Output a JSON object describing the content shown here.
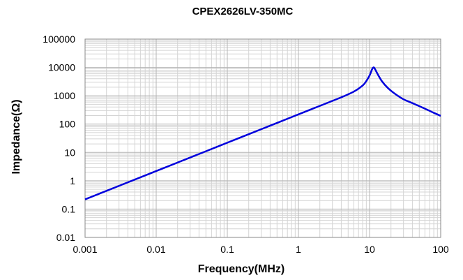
{
  "chart_data": {
    "type": "line",
    "title": "CPEX2626LV-350MC",
    "xlabel": "Frequency(MHz)",
    "ylabel": "Impedance(Ω)",
    "x_scale": "log",
    "y_scale": "log",
    "xlim": [
      0.001,
      100
    ],
    "ylim": [
      0.01,
      100000
    ],
    "x_ticks": [
      "0.001",
      "0.01",
      "0.1",
      "1",
      "10",
      "100"
    ],
    "y_ticks": [
      "100000",
      "10000",
      "1000",
      "100",
      "10",
      "1",
      "0.1",
      "0.01"
    ],
    "grid": true,
    "legend": "none",
    "line_color": "#0000dd",
    "series": [
      {
        "x": [
          0.001,
          0.002,
          0.005,
          0.01,
          0.02,
          0.05,
          0.1,
          0.2,
          0.5,
          1,
          2,
          4,
          6,
          8,
          9,
          10,
          10.5,
          11,
          11.5,
          12,
          13,
          15,
          18,
          22,
          30,
          40,
          60,
          80,
          100
        ],
        "values": [
          0.22,
          0.44,
          1.1,
          2.2,
          4.4,
          11,
          22,
          44,
          110,
          220,
          440,
          880,
          1400,
          2300,
          3300,
          5200,
          7000,
          9200,
          10000,
          8500,
          5800,
          3200,
          1900,
          1250,
          750,
          550,
          350,
          250,
          195
        ]
      }
    ]
  }
}
